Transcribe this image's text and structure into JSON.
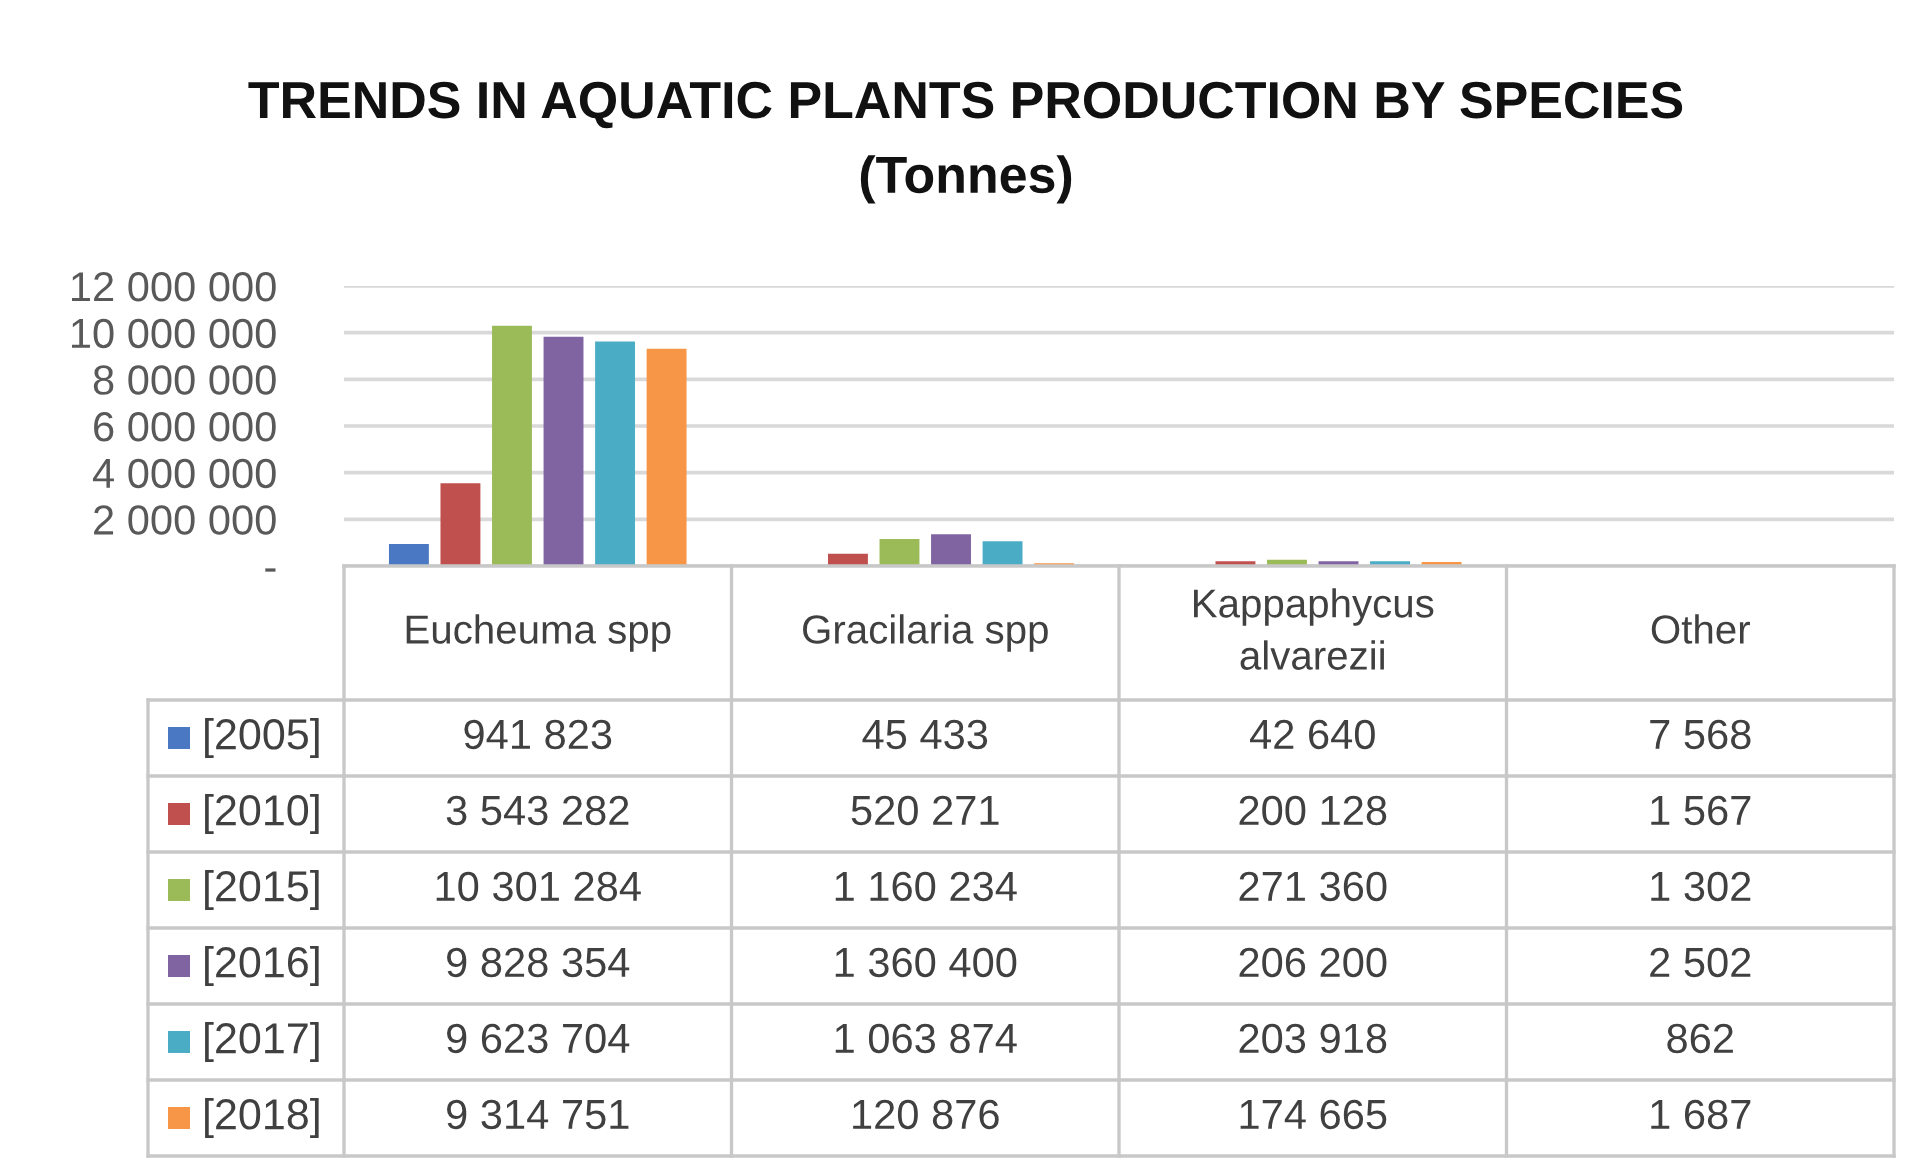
{
  "chart_data": {
    "type": "bar",
    "title": "TRENDS IN AQUATIC PLANTS PRODUCTION BY SPECIES\n(Tonnes)",
    "categories": [
      "Eucheuma spp",
      "Gracilaria spp",
      "Kappaphycus\nalvarezii",
      "Other"
    ],
    "series": [
      {
        "name": "[2005]",
        "color": "#4a78c2",
        "values": [
          941823,
          45433,
          42640,
          7568
        ],
        "value_labels": [
          "941 823",
          "45 433",
          "42 640",
          "7 568"
        ]
      },
      {
        "name": "[2010]",
        "color": "#c0504d",
        "values": [
          3543282,
          520271,
          200128,
          1567
        ],
        "value_labels": [
          "3 543 282",
          "520 271",
          "200 128",
          "1 567"
        ]
      },
      {
        "name": "[2015]",
        "color": "#9bbb59",
        "values": [
          10301284,
          1160234,
          271360,
          1302
        ],
        "value_labels": [
          "10 301 284",
          "1 160 234",
          "271 360",
          "1 302"
        ]
      },
      {
        "name": "[2016]",
        "color": "#8064a2",
        "values": [
          9828354,
          1360400,
          206200,
          2502
        ],
        "value_labels": [
          "9 828 354",
          "1 360 400",
          "206 200",
          "2 502"
        ]
      },
      {
        "name": "[2017]",
        "color": "#4bacc6",
        "values": [
          9623704,
          1063874,
          203918,
          862
        ],
        "value_labels": [
          "9 623 704",
          "1 063 874",
          "203 918",
          "862"
        ]
      },
      {
        "name": "[2018]",
        "color": "#f79646",
        "values": [
          9314751,
          120876,
          174665,
          1687
        ],
        "value_labels": [
          "9 314 751",
          "120 876",
          "174 665",
          "1 687"
        ]
      }
    ],
    "ylim": [
      0,
      12000000
    ],
    "yticks": [
      {
        "value": 0,
        "label": "-"
      },
      {
        "value": 2000000,
        "label": "2 000 000"
      },
      {
        "value": 4000000,
        "label": "4 000 000"
      },
      {
        "value": 6000000,
        "label": "6 000 000"
      },
      {
        "value": 8000000,
        "label": "8 000 000"
      },
      {
        "value": 10000000,
        "label": "10 000 000"
      },
      {
        "value": 12000000,
        "label": "12 000 000"
      }
    ],
    "grid": "y",
    "legend": "bottom"
  }
}
